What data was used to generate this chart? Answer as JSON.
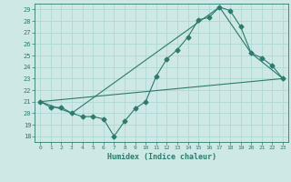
{
  "xlabel": "Humidex (Indice chaleur)",
  "xlim": [
    -0.5,
    23.5
  ],
  "ylim": [
    17.5,
    29.5
  ],
  "xticks": [
    0,
    1,
    2,
    3,
    4,
    5,
    6,
    7,
    8,
    9,
    10,
    11,
    12,
    13,
    14,
    15,
    16,
    17,
    18,
    19,
    20,
    21,
    22,
    23
  ],
  "yticks": [
    18,
    19,
    20,
    21,
    22,
    23,
    24,
    25,
    26,
    27,
    28,
    29
  ],
  "background_color": "#cde8e5",
  "grid_color": "#b0d8d5",
  "line_color": "#2d7a6e",
  "series": [
    {
      "x": [
        0,
        1,
        2,
        3,
        4,
        5,
        6,
        7,
        8,
        9,
        10,
        11,
        12,
        13,
        14,
        15,
        16,
        17,
        18,
        19,
        20,
        21,
        22,
        23
      ],
      "y": [
        21,
        20.5,
        20.5,
        20,
        19.7,
        19.7,
        19.5,
        18,
        19.3,
        20.4,
        21,
        23.2,
        24.7,
        25.5,
        26.6,
        28.1,
        28.3,
        29.2,
        28.9,
        27.5,
        25.2,
        24.8,
        24.1,
        23
      ],
      "marker": "D",
      "markersize": 2.5
    },
    {
      "x": [
        0,
        3,
        17,
        20,
        23
      ],
      "y": [
        21,
        20,
        29.2,
        25.2,
        23
      ],
      "marker": null,
      "markersize": 0
    },
    {
      "x": [
        0,
        23
      ],
      "y": [
        21,
        23
      ],
      "marker": null,
      "markersize": 0
    }
  ]
}
